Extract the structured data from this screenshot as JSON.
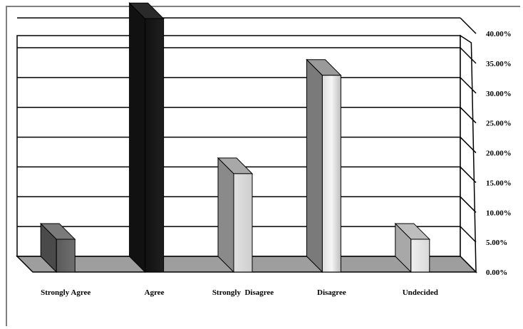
{
  "chart_data": {
    "type": "bar",
    "categories": [
      "Strongly Agree",
      "Agree",
      "Strongly  Disagree",
      "Disagree",
      "Undecided"
    ],
    "values": [
      5.5,
      42.5,
      16.5,
      33,
      5.5
    ],
    "y_ticks": [
      "0.00%",
      "5.00%",
      "10.00%",
      "15.00%",
      "20.00%",
      "25.00%",
      "30.00%",
      "35.00%",
      "40.00%"
    ],
    "ylim": [
      0,
      40
    ],
    "grid": true,
    "legend": "none",
    "colors": {
      "bar_front": [
        "#6f6f6f",
        "#1f1f1f",
        "#d8d8d8",
        "#cfcfcf",
        "#e8e8e8"
      ],
      "bar_side": [
        "#4a4a4a",
        "#111111",
        "#8a8a8a",
        "#7a7a7a",
        "#a8a8a8"
      ],
      "bar_top": [
        "#7a7a7a",
        "#2a2a2a",
        "#a8a8a8",
        "#9a9a9a",
        "#bdbdbd"
      ],
      "floor": "#9e9e9e",
      "wall": "#ffffff",
      "gridline": "#000000"
    }
  }
}
